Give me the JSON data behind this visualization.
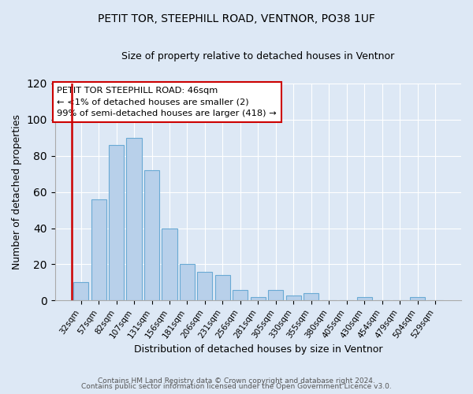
{
  "title": "PETIT TOR, STEEPHILL ROAD, VENTNOR, PO38 1UF",
  "subtitle": "Size of property relative to detached houses in Ventnor",
  "xlabel": "Distribution of detached houses by size in Ventnor",
  "ylabel": "Number of detached properties",
  "categories": [
    "32sqm",
    "57sqm",
    "82sqm",
    "107sqm",
    "131sqm",
    "156sqm",
    "181sqm",
    "206sqm",
    "231sqm",
    "256sqm",
    "281sqm",
    "305sqm",
    "330sqm",
    "355sqm",
    "380sqm",
    "405sqm",
    "430sqm",
    "454sqm",
    "479sqm",
    "504sqm",
    "529sqm"
  ],
  "values": [
    10,
    56,
    86,
    90,
    72,
    40,
    20,
    16,
    14,
    6,
    2,
    6,
    3,
    4,
    0,
    0,
    2,
    0,
    0,
    2,
    0
  ],
  "bar_color": "#b8d0ea",
  "bar_edge_color": "#6aaad4",
  "marker_color": "#cc0000",
  "annotation_line1": "PETIT TOR STEEPHILL ROAD: 46sqm",
  "annotation_line2": "← <1% of detached houses are smaller (2)",
  "annotation_line3": "99% of semi-detached houses are larger (418) →",
  "ylim": [
    0,
    120
  ],
  "yticks": [
    0,
    20,
    40,
    60,
    80,
    100,
    120
  ],
  "footer_line1": "Contains HM Land Registry data © Crown copyright and database right 2024.",
  "footer_line2": "Contains public sector information licensed under the Open Government Licence v3.0.",
  "bg_color": "#dde8f5",
  "plot_bg_color": "#dde8f5",
  "grid_color": "#ffffff",
  "title_fontsize": 10,
  "subtitle_fontsize": 9,
  "ylabel_fontsize": 9,
  "xlabel_fontsize": 9,
  "tick_fontsize": 7.5,
  "annotation_fontsize": 8.2,
  "footer_fontsize": 6.5
}
